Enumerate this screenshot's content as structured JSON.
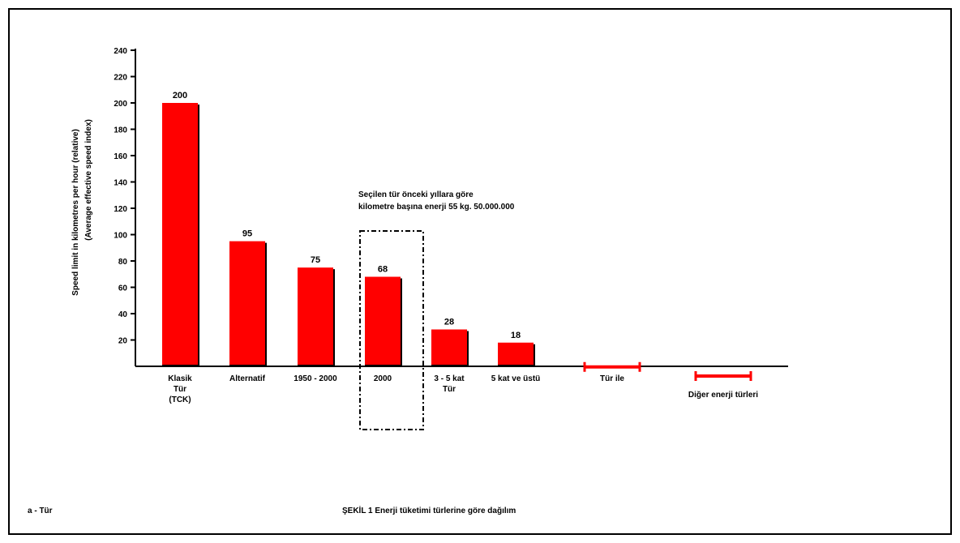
{
  "chart_data": {
    "type": "bar",
    "ylabel": "Speed limit in kilometres per hour (relative)",
    "ylabel_sub": "(Average effective speed index)",
    "ylim": [
      0,
      240
    ],
    "yticks": [
      20,
      40,
      60,
      80,
      100,
      120,
      140,
      160,
      180,
      200,
      220,
      240
    ],
    "bar_color": "#ff0000",
    "categories": [
      {
        "lines": [
          "Klasik",
          "Tür",
          "(TCK)"
        ],
        "value": 200,
        "label": "200",
        "kind": "bar"
      },
      {
        "lines": [
          "Alternatif"
        ],
        "value": 95,
        "label": "95",
        "kind": "bar"
      },
      {
        "lines": [
          "1950 - 2000"
        ],
        "value": 75,
        "label": "75",
        "kind": "bar"
      },
      {
        "lines": [
          "2000"
        ],
        "value": 68,
        "label": "68",
        "kind": "bar"
      },
      {
        "lines": [
          "3 - 5 kat",
          "Tür"
        ],
        "value": 28,
        "label": "28",
        "kind": "bar"
      },
      {
        "lines": [
          "5 kat ve üstü"
        ],
        "value": 18,
        "label": "18",
        "kind": "bar"
      },
      {
        "lines": [
          "Tür ile"
        ],
        "value": 2,
        "label": "",
        "kind": "range"
      },
      {
        "lines": [
          "Diğer enerji türleri"
        ],
        "value": 0,
        "label": "",
        "kind": "range"
      }
    ],
    "annotation": {
      "lines": [
        "Seçilen tür önceki yıllara göre",
        "kilometre başına enerji 55 kg. 50.000.000"
      ]
    }
  },
  "footer": {
    "left": "a - Tür",
    "center": "ŞEKİL 1 Enerji tüketimi türlerine göre dağılım"
  }
}
